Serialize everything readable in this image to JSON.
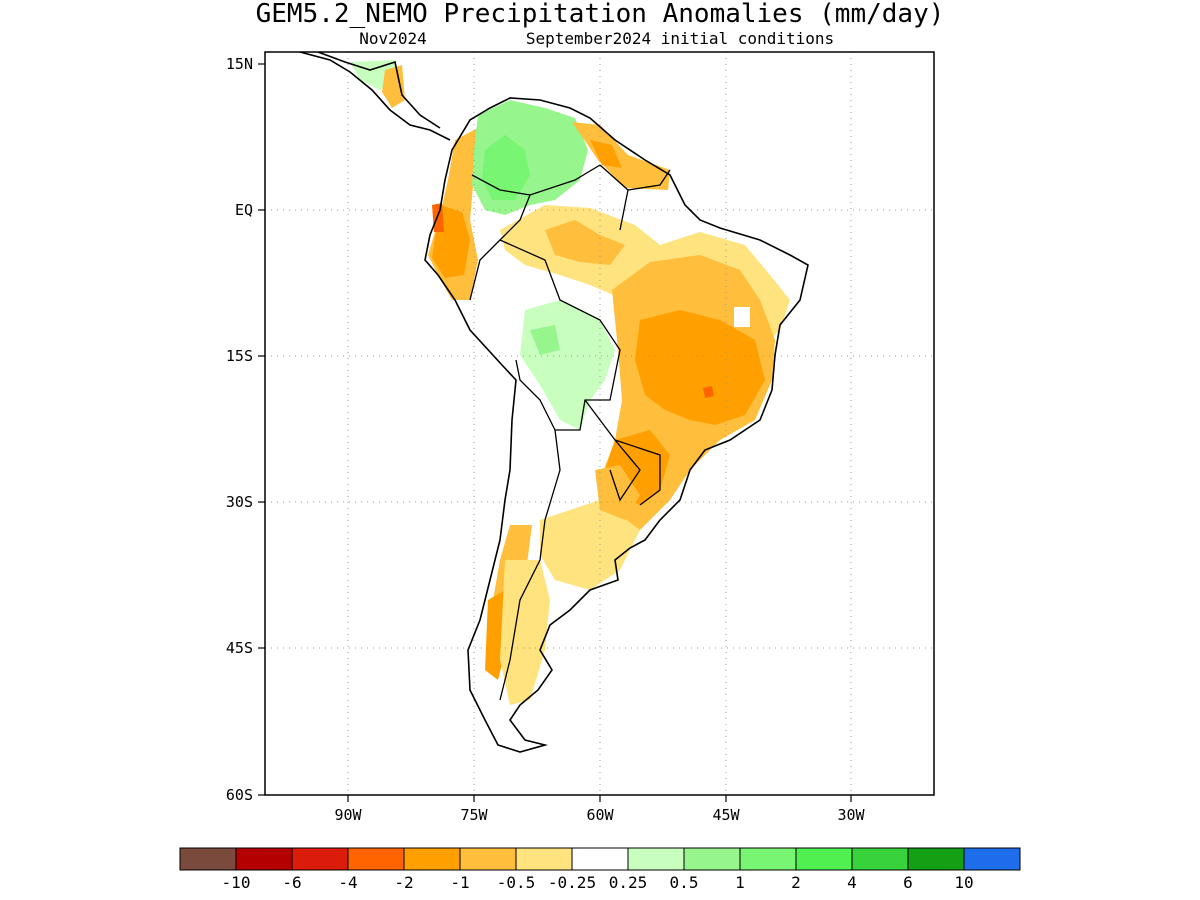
{
  "title": "GEM5.2_NEMO Precipitation Anomalies (mm/day)",
  "subtitle_left": "Nov2024",
  "subtitle_right": "September2024 initial conditions",
  "lat_labels": [
    "15N",
    "EQ",
    "15S",
    "30S",
    "45S",
    "60S"
  ],
  "lon_labels": [
    "90W",
    "75W",
    "60W",
    "45W",
    "30W"
  ],
  "colorbar": {
    "colors": [
      "#7a4a3c",
      "#b40000",
      "#dc1c0a",
      "#ff6400",
      "#ffa000",
      "#ffbe3c",
      "#ffe37e",
      "#ffffff",
      "#c8ffbe",
      "#96f58c",
      "#78f573",
      "#50f050",
      "#37d23c",
      "#14a014",
      "#1e6eeb"
    ],
    "labels": [
      "-10",
      "-6",
      "-4",
      "-2",
      "-1",
      "-0.5",
      "-0.25",
      "0.25",
      "0.5",
      "1",
      "2",
      "4",
      "6",
      "10"
    ]
  }
}
